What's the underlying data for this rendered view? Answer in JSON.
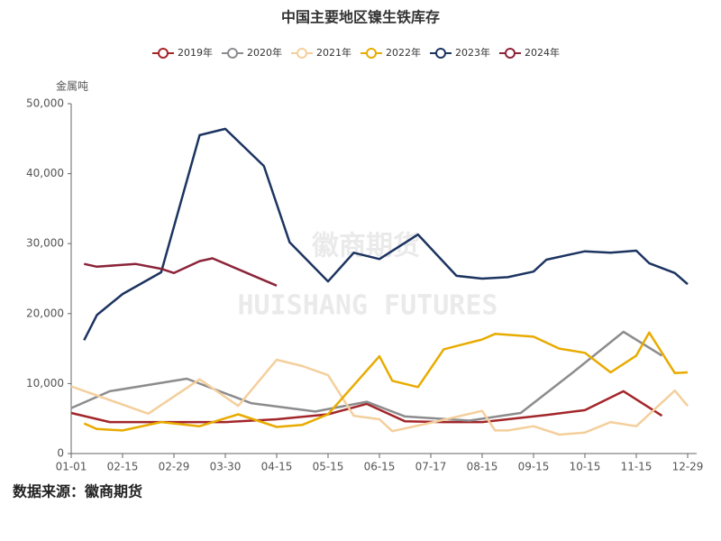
{
  "chart_data": {
    "type": "line",
    "title": "中国主要地区镍生铁库存",
    "y_label": "金属吨",
    "watermark": [
      "徽商期货",
      "HUISHANG FUTURES"
    ],
    "source": "数据来源：徽商期货",
    "xlim": [
      0,
      48
    ],
    "xticks": [
      {
        "value": 0,
        "label": "01-01"
      },
      {
        "value": 4,
        "label": "02-15"
      },
      {
        "value": 8,
        "label": "02-29"
      },
      {
        "value": 12,
        "label": "03-30"
      },
      {
        "value": 16,
        "label": "04-15"
      },
      {
        "value": 20,
        "label": "05-15"
      },
      {
        "value": 24,
        "label": "06-15"
      },
      {
        "value": 28,
        "label": "07-17"
      },
      {
        "value": 32,
        "label": "08-15"
      },
      {
        "value": 36,
        "label": "09-15"
      },
      {
        "value": 40,
        "label": "10-15"
      },
      {
        "value": 44,
        "label": "11-15"
      },
      {
        "value": 48,
        "label": "12-29"
      }
    ],
    "ylim": [
      0,
      50000
    ],
    "yticks": [
      0,
      {
        "value": 10000,
        "label": "10,000"
      },
      {
        "value": 20000,
        "label": "20,000"
      },
      {
        "value": 30000,
        "label": "30,000"
      },
      {
        "value": 40000,
        "label": "40,000"
      },
      {
        "value": 50000,
        "label": "50,000"
      }
    ],
    "grid": false,
    "legend": "top",
    "series": [
      {
        "name": "2019年",
        "color": "#a3262a",
        "x": [
          0,
          3,
          7,
          12,
          16,
          20,
          23,
          26,
          29,
          32,
          37,
          40,
          43,
          46
        ],
        "values": [
          5800,
          4500,
          4500,
          4500,
          4900,
          5600,
          7100,
          4600,
          4500,
          4500,
          5500,
          6200,
          8900,
          5400
        ]
      },
      {
        "name": "2020年",
        "color": "#8c8c8e",
        "x": [
          0,
          3,
          9,
          14,
          19,
          23,
          26,
          31,
          35,
          39,
          43,
          46
        ],
        "values": [
          6500,
          8900,
          10700,
          7200,
          6000,
          7400,
          5300,
          4700,
          5800,
          11500,
          17400,
          14000
        ]
      },
      {
        "name": "2021年",
        "color": "#f4cf9c",
        "x": [
          0,
          6,
          10,
          13,
          16,
          18,
          20,
          22,
          24,
          25,
          28,
          32,
          33,
          34,
          36,
          38,
          40,
          42,
          44,
          47,
          48
        ],
        "values": [
          9600,
          5700,
          10600,
          6800,
          13400,
          12500,
          11200,
          5400,
          4900,
          3200,
          4400,
          6100,
          3300,
          3300,
          3900,
          2700,
          3000,
          4500,
          3900,
          9000,
          6800
        ]
      },
      {
        "name": "2022年",
        "color": "#e8ab00",
        "x": [
          1,
          2,
          4,
          7,
          10,
          13,
          16,
          18,
          20,
          24,
          25,
          27,
          29,
          32,
          33,
          36,
          38,
          40,
          42,
          44,
          45,
          47,
          48
        ],
        "values": [
          4300,
          3500,
          3300,
          4500,
          3900,
          5600,
          3800,
          4100,
          5600,
          13900,
          10400,
          9500,
          14900,
          16300,
          17100,
          16700,
          15000,
          14400,
          11600,
          14000,
          17300,
          11500,
          11600
        ]
      },
      {
        "name": "2023年",
        "color": "#1d3461",
        "x": [
          1,
          2,
          4,
          7,
          10,
          12,
          15,
          17,
          20,
          22,
          24,
          27,
          30,
          32,
          34,
          36,
          37,
          40,
          42,
          44,
          45,
          47,
          48
        ],
        "values": [
          16200,
          19800,
          22800,
          25900,
          45500,
          46400,
          41100,
          30200,
          24600,
          28700,
          27800,
          31300,
          25400,
          25000,
          25200,
          26000,
          27700,
          28900,
          28700,
          29000,
          27200,
          25800,
          24200
        ]
      },
      {
        "name": "2024年",
        "color": "#8b2438",
        "x": [
          1,
          2,
          5,
          7,
          8,
          10,
          11,
          16
        ],
        "values": [
          27100,
          26700,
          27100,
          26400,
          25800,
          27500,
          27900,
          24000
        ]
      }
    ]
  }
}
